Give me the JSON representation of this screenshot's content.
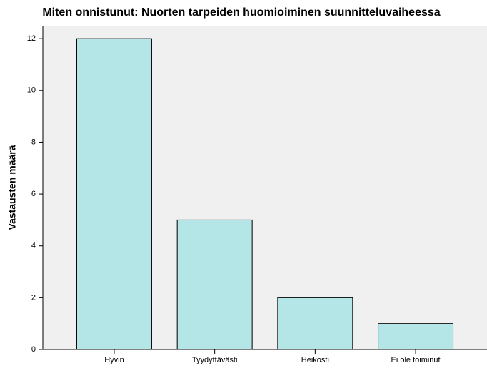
{
  "chart_data": {
    "type": "bar",
    "title": "Miten onnistunut: Nuorten tarpeiden huomioiminen suunnitteluvaiheessa",
    "ylabel": "Vastausten määrä",
    "categories": [
      "Hyvin",
      "Tyydyttävästi",
      "Heikosti",
      "Ei ole toiminut"
    ],
    "values": [
      12,
      5,
      2,
      1
    ],
    "color": "#b4e6e8",
    "ylim": [
      0,
      12.5
    ],
    "yticks": [
      0,
      2,
      4,
      6,
      8,
      10,
      12
    ],
    "grid": false
  }
}
